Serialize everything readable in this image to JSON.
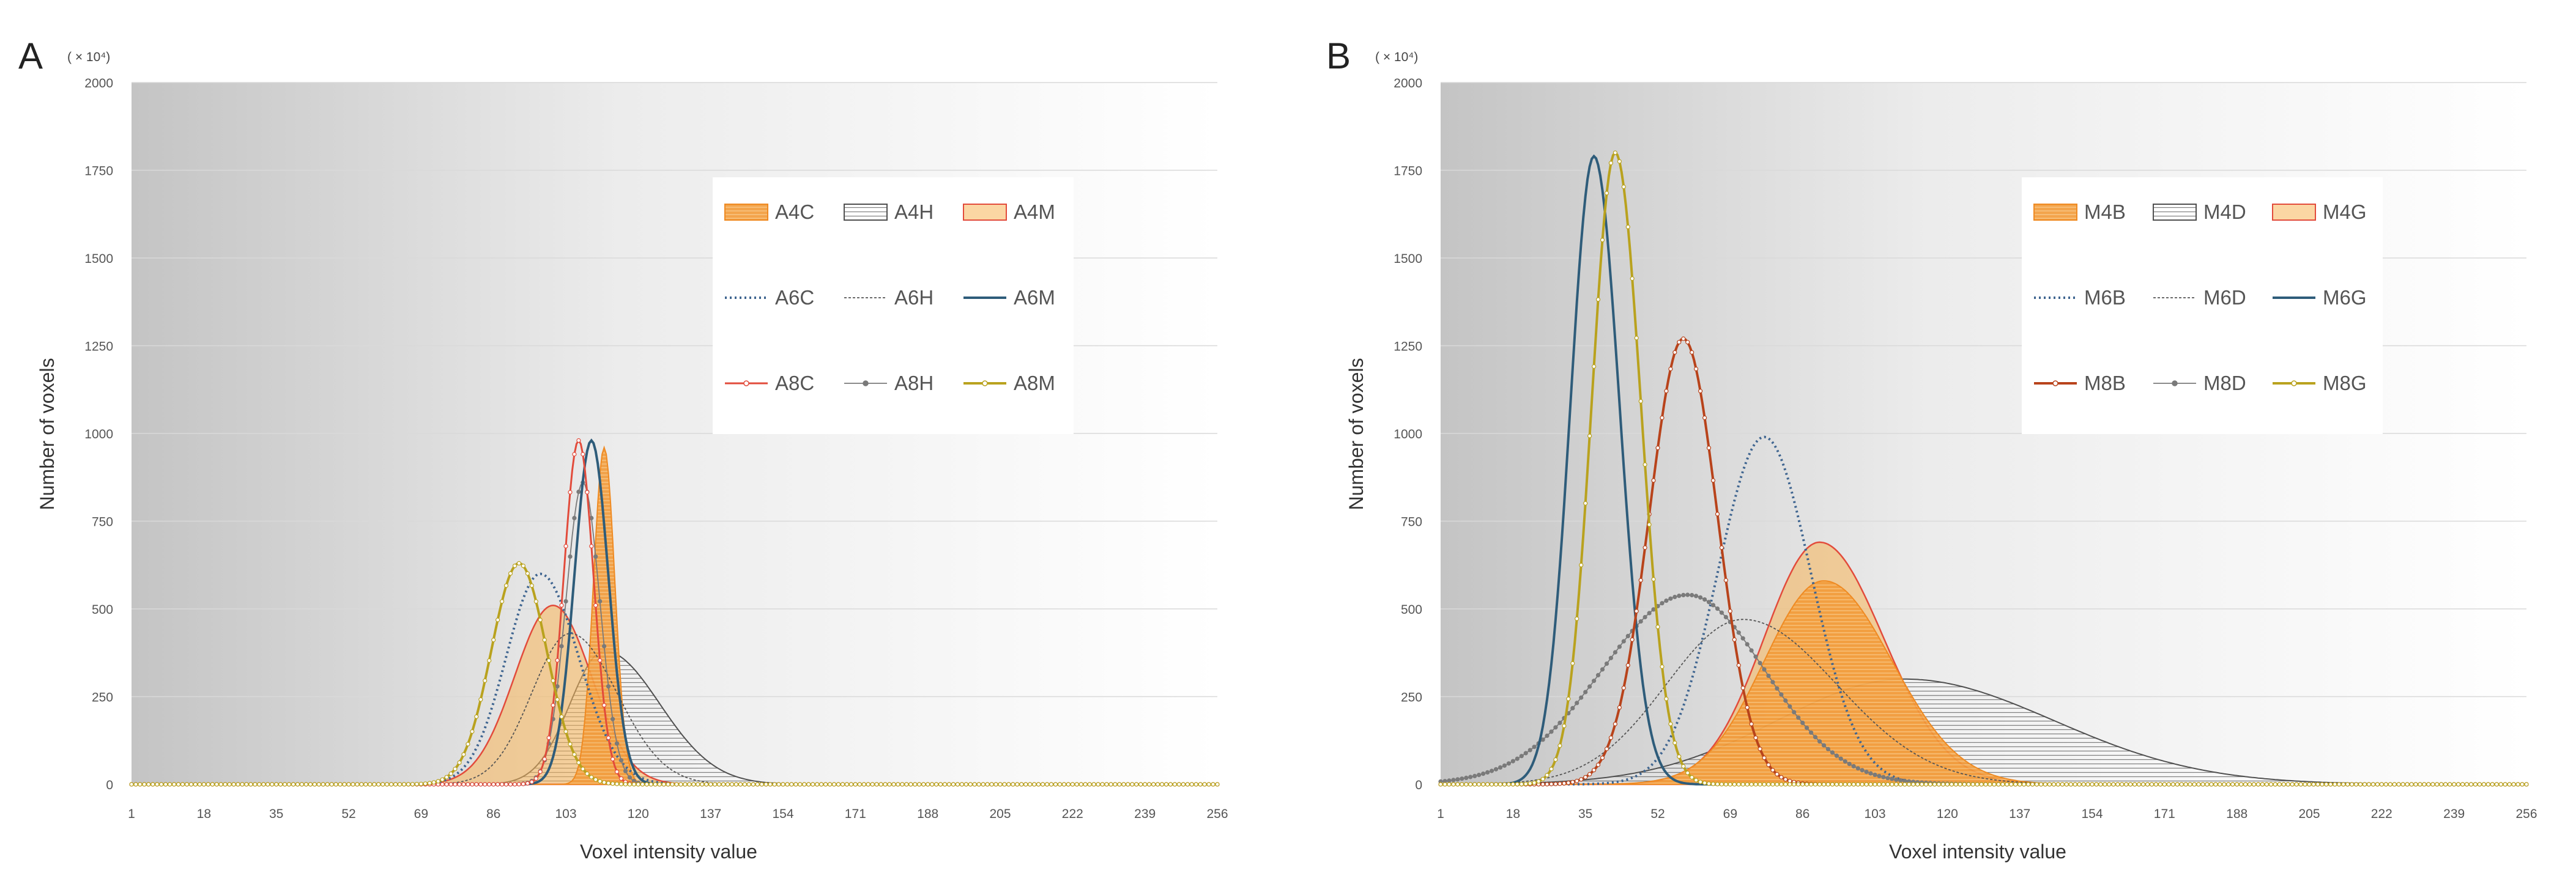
{
  "figure_colors": {
    "orange": "#f0922f",
    "red": "#e24b3b",
    "gray": "#505050",
    "blue": "#2e5c7a",
    "rust": "#b8431b",
    "gold": "#b9a21e",
    "dotted": "#3f6590"
  },
  "chart_data": [
    {
      "panel": "A",
      "type": "area",
      "unit_label": "( × 10⁴)",
      "xlabel": "Voxel intensity value",
      "ylabel": "Number of voxels",
      "xlim": [
        1,
        256
      ],
      "ylim": [
        0,
        2000
      ],
      "y_ticks": [
        "0",
        "250",
        "500",
        "750",
        "1000",
        "1250",
        "1500",
        "1750",
        "2000"
      ],
      "x_ticks": [
        "1",
        "18",
        "35",
        "52",
        "69",
        "86",
        "103",
        "120",
        "137",
        "154",
        "171",
        "188",
        "205",
        "222",
        "239",
        "256"
      ],
      "grid": true,
      "legend_position": "top-right",
      "legend_rows": [
        [
          {
            "name": "A4C",
            "style": "fill-orange"
          },
          {
            "name": "A4H",
            "style": "fill-hatch"
          },
          {
            "name": "A4M",
            "style": "fill-light"
          }
        ],
        [
          {
            "name": "A6C",
            "style": "dotted"
          },
          {
            "name": "A6H",
            "style": "thin-dashed"
          },
          {
            "name": "A6M",
            "style": "solid-blue"
          }
        ],
        [
          {
            "name": "A8C",
            "style": "marker-red"
          },
          {
            "name": "A8H",
            "style": "marker-gray"
          },
          {
            "name": "A8M",
            "style": "marker-gold"
          }
        ]
      ],
      "series": [
        {
          "name": "A4C",
          "style": "fill-orange",
          "peak_x": 112,
          "peak_y": 960,
          "sd_left": 2.5,
          "sd_right": 2.5
        },
        {
          "name": "A4H",
          "style": "fill-hatch",
          "peak_x": 112,
          "peak_y": 380,
          "sd_left": 8,
          "sd_right": 13
        },
        {
          "name": "A4M",
          "style": "fill-light",
          "peak_x": 100,
          "peak_y": 510,
          "sd_left": 9,
          "sd_right": 9
        },
        {
          "name": "A6C",
          "style": "dotted",
          "peak_x": 97,
          "peak_y": 600,
          "sd_left": 8,
          "sd_right": 9
        },
        {
          "name": "A6H",
          "style": "thin-dashed",
          "peak_x": 104,
          "peak_y": 430,
          "sd_left": 9,
          "sd_right": 11
        },
        {
          "name": "A6M",
          "style": "solid-blue",
          "peak_x": 109,
          "peak_y": 980,
          "sd_left": 4,
          "sd_right": 4
        },
        {
          "name": "A8C",
          "style": "marker-red",
          "peak_x": 106,
          "peak_y": 980,
          "sd_left": 3.5,
          "sd_right": 3.5
        },
        {
          "name": "A8H",
          "style": "marker-gray",
          "peak_x": 107,
          "peak_y": 860,
          "sd_left": 4,
          "sd_right": 4
        },
        {
          "name": "A8M",
          "style": "marker-gold",
          "peak_x": 92,
          "peak_y": 630,
          "sd_left": 6.5,
          "sd_right": 6.5
        }
      ]
    },
    {
      "panel": "B",
      "type": "area",
      "unit_label": "( × 10⁴)",
      "xlabel": "Voxel intensity value",
      "ylabel": "Number of voxels",
      "xlim": [
        1,
        256
      ],
      "ylim": [
        0,
        2000
      ],
      "y_ticks": [
        "0",
        "250",
        "500",
        "750",
        "1000",
        "1250",
        "1500",
        "1750",
        "2000"
      ],
      "x_ticks": [
        "1",
        "18",
        "35",
        "52",
        "69",
        "86",
        "103",
        "120",
        "137",
        "154",
        "171",
        "188",
        "205",
        "222",
        "239",
        "256"
      ],
      "grid": true,
      "legend_position": "top-right",
      "legend_rows": [
        [
          {
            "name": "M4B",
            "style": "fill-orange"
          },
          {
            "name": "M4D",
            "style": "fill-hatch"
          },
          {
            "name": "M4G",
            "style": "fill-light"
          }
        ],
        [
          {
            "name": "M6B",
            "style": "dotted"
          },
          {
            "name": "M6D",
            "style": "thin-dashed"
          },
          {
            "name": "M6G",
            "style": "solid-blue"
          }
        ],
        [
          {
            "name": "M8B",
            "style": "marker-rust"
          },
          {
            "name": "M8D",
            "style": "marker-gray"
          },
          {
            "name": "M8G",
            "style": "marker-gold"
          }
        ]
      ],
      "series": [
        {
          "name": "M4B",
          "style": "fill-orange",
          "peak_x": 91,
          "peak_y": 580,
          "sd_left": 14,
          "sd_right": 16
        },
        {
          "name": "M4D",
          "style": "fill-hatch",
          "peak_x": 110,
          "peak_y": 300,
          "sd_left": 30,
          "sd_right": 35
        },
        {
          "name": "M4G",
          "style": "fill-light",
          "peak_x": 90,
          "peak_y": 690,
          "sd_left": 13,
          "sd_right": 15
        },
        {
          "name": "M6B",
          "style": "dotted",
          "peak_x": 77,
          "peak_y": 990,
          "sd_left": 11,
          "sd_right": 11
        },
        {
          "name": "M6D",
          "style": "thin-dashed",
          "peak_x": 72,
          "peak_y": 470,
          "sd_left": 18,
          "sd_right": 22
        },
        {
          "name": "M6G",
          "style": "solid-blue",
          "peak_x": 37,
          "peak_y": 1790,
          "sd_left": 5.5,
          "sd_right": 6
        },
        {
          "name": "M8B",
          "style": "marker-rust",
          "peak_x": 58,
          "peak_y": 1270,
          "sd_left": 8,
          "sd_right": 8
        },
        {
          "name": "M8D",
          "style": "marker-gray",
          "peak_x": 59,
          "peak_y": 540,
          "sd_left": 20,
          "sd_right": 18
        },
        {
          "name": "M8G",
          "style": "marker-gold",
          "peak_x": 42,
          "peak_y": 1800,
          "sd_left": 5.5,
          "sd_right": 6
        }
      ]
    }
  ]
}
